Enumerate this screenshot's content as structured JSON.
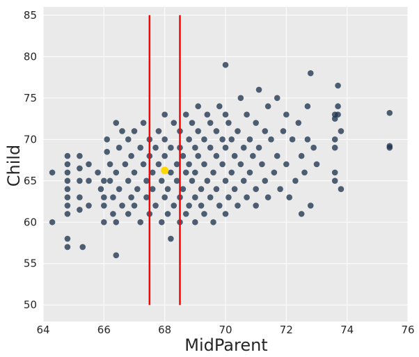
{
  "chart_data": {
    "type": "scatter",
    "title": "",
    "xlabel": "MidParent",
    "ylabel": "Child",
    "xlim": [
      64.0,
      76.0
    ],
    "ylim": [
      48.0,
      86.0
    ],
    "x_ticks": [
      "64",
      "66",
      "68",
      "70",
      "72",
      "74",
      "76"
    ],
    "y_ticks": [
      "50",
      "55",
      "60",
      "65",
      "70",
      "75",
      "80",
      "85"
    ],
    "grid": true,
    "colors": {
      "background": "#eaeaea",
      "grid": "#ffffff",
      "points": "#1f3450",
      "highlight": "#ffd700",
      "vertical_lines": "#ff0000"
    },
    "vertical_lines": [
      {
        "x": 67.5,
        "y_range": [
          50,
          85
        ]
      },
      {
        "x": 68.5,
        "y_range": [
          50,
          85
        ]
      }
    ],
    "highlight_point": {
      "x": 68.0,
      "y": 66.24
    },
    "points": [
      [
        64.3,
        66.0
      ],
      [
        64.3,
        60.0
      ],
      [
        64.8,
        68.0
      ],
      [
        64.8,
        67.0
      ],
      [
        64.8,
        66.0
      ],
      [
        64.8,
        65.0
      ],
      [
        64.8,
        64.0
      ],
      [
        64.8,
        63.0
      ],
      [
        64.8,
        62.0
      ],
      [
        64.8,
        61.0
      ],
      [
        64.8,
        58.0
      ],
      [
        64.8,
        57.0
      ],
      [
        65.2,
        68.0
      ],
      [
        65.2,
        66.5
      ],
      [
        65.2,
        65.0
      ],
      [
        65.2,
        63.0
      ],
      [
        65.2,
        61.5
      ],
      [
        65.3,
        57.0
      ],
      [
        65.5,
        67.0
      ],
      [
        65.5,
        65.0
      ],
      [
        65.5,
        62.0
      ],
      [
        65.8,
        66.0
      ],
      [
        65.9,
        64.0
      ],
      [
        66.0,
        65.0
      ],
      [
        66.0,
        63.0
      ],
      [
        66.0,
        62.0
      ],
      [
        66.0,
        60.0
      ],
      [
        66.1,
        70.0
      ],
      [
        66.1,
        68.5
      ],
      [
        66.2,
        67.0
      ],
      [
        66.2,
        65.0
      ],
      [
        66.3,
        63.0
      ],
      [
        66.3,
        61.0
      ],
      [
        66.4,
        72.0
      ],
      [
        66.4,
        66.0
      ],
      [
        66.4,
        60.0
      ],
      [
        66.4,
        56.0
      ],
      [
        66.5,
        69.0
      ],
      [
        66.5,
        64.0
      ],
      [
        66.6,
        71.0
      ],
      [
        66.6,
        62.0
      ],
      [
        66.7,
        67.0
      ],
      [
        66.8,
        65.0
      ],
      [
        66.8,
        70.0
      ],
      [
        66.8,
        61.0
      ],
      [
        66.9,
        63.0
      ],
      [
        66.9,
        68.0
      ],
      [
        67.0,
        71.0
      ],
      [
        67.0,
        66.0
      ],
      [
        67.0,
        62.0
      ],
      [
        67.1,
        64.0
      ],
      [
        67.2,
        69.0
      ],
      [
        67.2,
        60.0
      ],
      [
        67.3,
        67.0
      ],
      [
        67.3,
        72.0
      ],
      [
        67.4,
        63.0
      ],
      [
        67.4,
        65.0
      ],
      [
        67.5,
        70.0
      ],
      [
        67.5,
        68.0
      ],
      [
        67.5,
        61.0
      ],
      [
        67.6,
        66.0
      ],
      [
        67.6,
        64.0
      ],
      [
        67.7,
        69.0
      ],
      [
        67.7,
        62.0
      ],
      [
        67.8,
        71.0
      ],
      [
        67.8,
        67.0
      ],
      [
        67.9,
        65.0
      ],
      [
        67.9,
        60.0
      ],
      [
        68.0,
        73.0
      ],
      [
        68.0,
        70.0
      ],
      [
        68.0,
        68.0
      ],
      [
        68.0,
        63.0
      ],
      [
        68.1,
        64.0
      ],
      [
        68.1,
        61.0
      ],
      [
        68.2,
        69.0
      ],
      [
        68.2,
        66.0
      ],
      [
        68.2,
        58.0
      ],
      [
        68.3,
        72.0
      ],
      [
        68.3,
        62.0
      ],
      [
        68.4,
        67.0
      ],
      [
        68.4,
        65.0
      ],
      [
        68.5,
        71.0
      ],
      [
        68.5,
        69.0
      ],
      [
        68.5,
        63.0
      ],
      [
        68.5,
        60.0
      ],
      [
        68.6,
        68.0
      ],
      [
        68.6,
        64.0
      ],
      [
        68.7,
        73.0
      ],
      [
        68.7,
        66.0
      ],
      [
        68.7,
        61.0
      ],
      [
        68.8,
        70.0
      ],
      [
        68.8,
        67.0
      ],
      [
        68.8,
        62.0
      ],
      [
        68.9,
        72.0
      ],
      [
        68.9,
        65.0
      ],
      [
        69.0,
        69.0
      ],
      [
        69.0,
        66.0
      ],
      [
        69.0,
        63.0
      ],
      [
        69.0,
        60.0
      ],
      [
        69.1,
        74.0
      ],
      [
        69.1,
        71.0
      ],
      [
        69.1,
        68.0
      ],
      [
        69.2,
        64.0
      ],
      [
        69.2,
        62.0
      ],
      [
        69.3,
        70.0
      ],
      [
        69.3,
        67.0
      ],
      [
        69.3,
        61.0
      ],
      [
        69.4,
        73.0
      ],
      [
        69.4,
        65.0
      ],
      [
        69.5,
        72.0
      ],
      [
        69.5,
        69.0
      ],
      [
        69.5,
        63.0
      ],
      [
        69.6,
        66.0
      ],
      [
        69.6,
        60.0
      ],
      [
        69.7,
        71.0
      ],
      [
        69.7,
        68.0
      ],
      [
        69.7,
        64.0
      ],
      [
        69.8,
        74.0
      ],
      [
        69.8,
        62.0
      ],
      [
        69.9,
        70.0
      ],
      [
        69.9,
        67.0
      ],
      [
        70.0,
        79.0
      ],
      [
        70.0,
        73.0
      ],
      [
        70.0,
        69.0
      ],
      [
        70.0,
        65.0
      ],
      [
        70.0,
        61.0
      ],
      [
        70.1,
        72.0
      ],
      [
        70.1,
        63.0
      ],
      [
        70.2,
        70.0
      ],
      [
        70.2,
        66.0
      ],
      [
        70.3,
        68.0
      ],
      [
        70.3,
        64.0
      ],
      [
        70.4,
        71.0
      ],
      [
        70.4,
        62.0
      ],
      [
        70.5,
        75.0
      ],
      [
        70.5,
        67.0
      ],
      [
        70.6,
        69.0
      ],
      [
        70.6,
        65.0
      ],
      [
        70.7,
        73.0
      ],
      [
        70.7,
        63.0
      ],
      [
        70.8,
        70.0
      ],
      [
        70.8,
        66.0
      ],
      [
        70.9,
        68.0
      ],
      [
        71.0,
        72.0
      ],
      [
        71.0,
        64.0
      ],
      [
        71.0,
        62.0
      ],
      [
        71.1,
        76.0
      ],
      [
        71.1,
        69.0
      ],
      [
        71.2,
        67.0
      ],
      [
        71.3,
        71.0
      ],
      [
        71.3,
        65.0
      ],
      [
        71.4,
        74.0
      ],
      [
        71.4,
        63.0
      ],
      [
        71.5,
        70.0
      ],
      [
        71.6,
        66.0
      ],
      [
        71.7,
        75.0
      ],
      [
        71.7,
        68.0
      ],
      [
        71.8,
        64.0
      ],
      [
        71.9,
        71.0
      ],
      [
        72.0,
        73.0
      ],
      [
        72.0,
        67.0
      ],
      [
        72.1,
        63.0
      ],
      [
        72.2,
        70.0
      ],
      [
        72.3,
        65.0
      ],
      [
        72.4,
        72.0
      ],
      [
        72.5,
        68.0
      ],
      [
        72.5,
        61.0
      ],
      [
        72.6,
        66.0
      ],
      [
        72.7,
        74.0
      ],
      [
        72.7,
        70.0
      ],
      [
        72.8,
        78.0
      ],
      [
        72.8,
        62.0
      ],
      [
        72.9,
        69.0
      ],
      [
        73.0,
        67.0
      ],
      [
        73.6,
        73.0
      ],
      [
        73.6,
        72.5
      ],
      [
        73.6,
        70.0
      ],
      [
        73.6,
        69.0
      ],
      [
        73.6,
        66.0
      ],
      [
        73.6,
        65.0
      ],
      [
        73.7,
        76.5
      ],
      [
        73.7,
        74.0
      ],
      [
        73.7,
        73.0
      ],
      [
        73.8,
        71.0
      ],
      [
        73.8,
        64.0
      ],
      [
        75.4,
        73.2
      ],
      [
        75.4,
        69.2
      ],
      [
        75.4,
        69.0
      ]
    ]
  }
}
